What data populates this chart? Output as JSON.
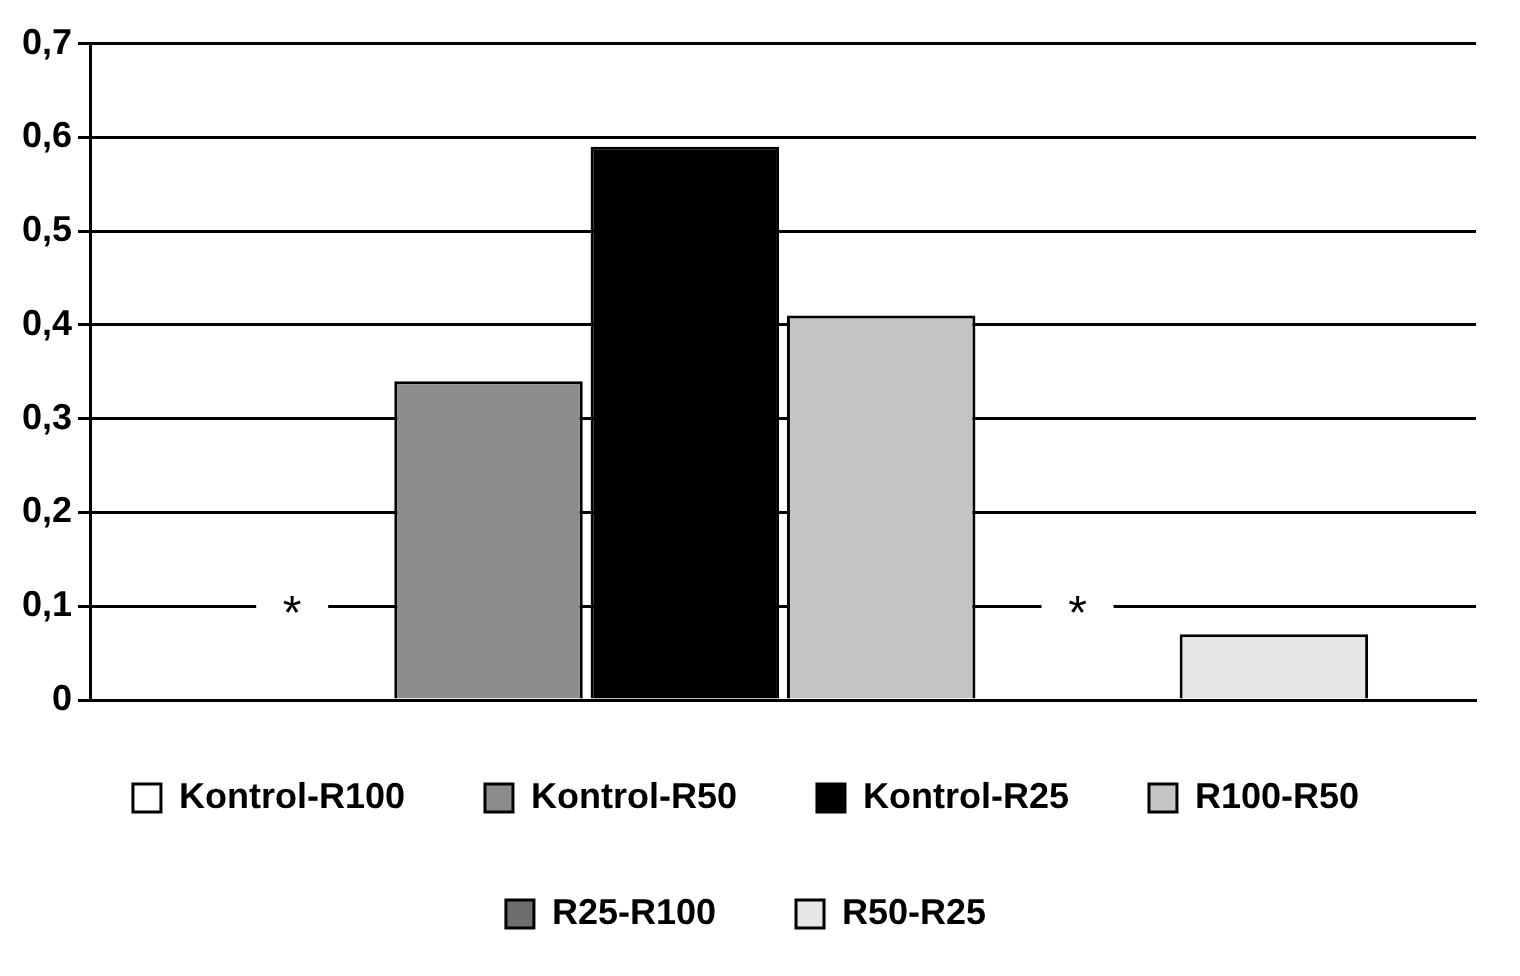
{
  "chart_data": {
    "type": "bar",
    "categories": [
      null
    ],
    "series": [
      {
        "name": "Kontrol-R100",
        "color": "#ffffff",
        "values": [
          null
        ]
      },
      {
        "name": "Kontrol-R50",
        "color": "#8c8c8c",
        "values": [
          0.34
        ]
      },
      {
        "name": "Kontrol-R25",
        "color": "#000000",
        "values": [
          0.59
        ]
      },
      {
        "name": "R100-R50",
        "color": "#c4c4c4",
        "values": [
          0.41
        ]
      },
      {
        "name": "R25-R100",
        "color": "#6e6e6e",
        "values": [
          null
        ]
      },
      {
        "name": "R50-R25",
        "color": "#e6e6e6",
        "values": [
          0.07
        ]
      }
    ],
    "ylim": [
      0,
      0.7
    ],
    "yticks": [
      {
        "value": 0,
        "label": "0"
      },
      {
        "value": 0.1,
        "label": "0,1"
      },
      {
        "value": 0.2,
        "label": "0,2"
      },
      {
        "value": 0.3,
        "label": "0,3"
      },
      {
        "value": 0.4,
        "label": "0,4"
      },
      {
        "value": 0.5,
        "label": "0,5"
      },
      {
        "value": 0.6,
        "label": "0,6"
      },
      {
        "value": 0.7,
        "label": "0,7"
      }
    ],
    "annotations": [
      {
        "text": "*",
        "y": 0.1
      },
      {
        "text": "*",
        "y": 0.1
      }
    ],
    "grid": "y",
    "legend": "bottom",
    "tick_labels": "y"
  }
}
